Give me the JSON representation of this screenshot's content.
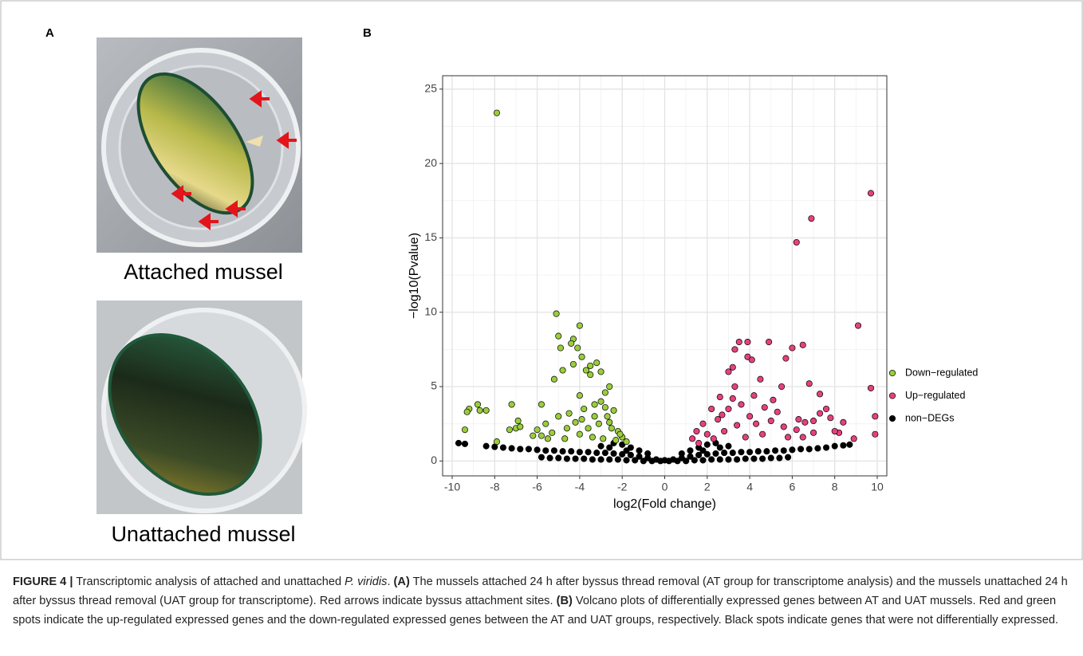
{
  "panel_a": {
    "label": "A",
    "images": [
      {
        "caption": "Attached mussel"
      },
      {
        "caption": "Unattached mussel"
      }
    ]
  },
  "panel_b": {
    "label": "B"
  },
  "chart_data": {
    "type": "scatter",
    "x_label": "log2(Fold change)",
    "y_label": "−log10(Pvalue)",
    "xlim": [
      -10.45,
      10.45
    ],
    "ylim": [
      -1.0,
      25.9
    ],
    "xticks": [
      -10,
      -8,
      -6,
      -4,
      -2,
      0,
      2,
      4,
      6,
      8,
      10
    ],
    "yticks": [
      0,
      5,
      10,
      15,
      20,
      25
    ],
    "grid": true,
    "legend": "right",
    "series": [
      {
        "name": "Down−regulated",
        "color": "#9acd3c",
        "x": [
          -7.9,
          -5.1,
          -4.0,
          -4.3,
          -4.4,
          -5.0,
          -4.1,
          -3.9,
          -4.9,
          -3.2,
          -4.3,
          -3.5,
          -3.7,
          -4.8,
          -3.0,
          -5.2,
          -3.5,
          -2.6,
          -2.8,
          -4.0,
          -5.8,
          -8.8,
          -9.2,
          -9.3,
          -8.7,
          -8.4,
          -7.2,
          -6.9,
          -7.0,
          -7.3,
          -6.8,
          -9.4,
          -7.9,
          -6.0,
          -5.6,
          -5.0,
          -4.5,
          -3.8,
          -2.2,
          -2.4,
          -3.0,
          -3.3,
          -2.6,
          -2.0,
          -1.8,
          -4.2,
          -3.6,
          -5.3,
          -4.7,
          -2.9,
          -2.3,
          -3.4,
          -4.0,
          -5.8,
          -2.7,
          -3.1,
          -2.5,
          -4.6,
          -3.9,
          -3.3,
          -2.8,
          -2.1,
          -6.2,
          -5.5
        ],
        "values": [
          23.4,
          9.9,
          9.1,
          8.2,
          7.9,
          8.4,
          7.6,
          7.0,
          7.6,
          6.6,
          6.5,
          6.4,
          6.1,
          6.1,
          6.0,
          5.5,
          5.8,
          5.0,
          4.6,
          4.4,
          3.8,
          3.8,
          3.5,
          3.3,
          3.4,
          3.4,
          3.8,
          2.7,
          2.2,
          2.1,
          2.3,
          2.1,
          1.3,
          2.1,
          2.5,
          3.0,
          3.2,
          3.5,
          2.0,
          3.4,
          4.0,
          3.0,
          2.6,
          1.6,
          1.3,
          2.6,
          2.2,
          1.9,
          1.5,
          1.5,
          1.4,
          1.6,
          1.8,
          1.7,
          3.0,
          2.5,
          2.2,
          2.2,
          2.8,
          3.8,
          3.6,
          1.8,
          1.7,
          1.5
        ]
      },
      {
        "name": "Up−regulated",
        "color": "#e6417f",
        "x": [
          9.7,
          6.9,
          6.2,
          9.1,
          9.7,
          9.9,
          9.9,
          3.5,
          3.9,
          4.9,
          6.0,
          6.5,
          3.3,
          3.9,
          4.1,
          3.2,
          3.0,
          5.7,
          6.8,
          7.3,
          5.5,
          4.5,
          5.1,
          7.6,
          3.3,
          2.6,
          2.2,
          1.8,
          1.5,
          1.3,
          2.0,
          2.5,
          3.0,
          3.6,
          4.0,
          4.3,
          5.0,
          5.6,
          6.2,
          7.0,
          7.3,
          7.8,
          8.4,
          8.2,
          8.9,
          6.5,
          2.8,
          3.4,
          4.7,
          5.3,
          1.6,
          2.3,
          3.8,
          4.6,
          5.8,
          7.0,
          6.6,
          2.7,
          3.2,
          4.2,
          6.3,
          8.0
        ],
        "values": [
          18.0,
          16.3,
          14.7,
          9.1,
          4.9,
          3.0,
          1.8,
          8.0,
          8.0,
          8.0,
          7.6,
          7.8,
          7.5,
          7.0,
          6.8,
          6.3,
          6.0,
          6.9,
          5.2,
          4.5,
          5.0,
          5.5,
          4.1,
          3.5,
          5.0,
          4.3,
          3.5,
          2.5,
          2.0,
          1.5,
          1.8,
          2.8,
          3.5,
          3.8,
          3.0,
          2.5,
          2.7,
          2.3,
          2.1,
          2.7,
          3.2,
          2.9,
          2.6,
          1.9,
          1.5,
          1.6,
          2.0,
          2.4,
          3.6,
          3.3,
          1.2,
          1.5,
          1.6,
          1.8,
          1.6,
          1.9,
          2.6,
          3.1,
          4.2,
          4.4,
          2.8,
          2.0
        ]
      },
      {
        "name": "non−DEGs",
        "color": "#000000",
        "x": [
          -9.7,
          -9.4,
          -8.4,
          -8.0,
          -7.6,
          -7.2,
          -6.8,
          -6.4,
          -6.0,
          -5.6,
          -5.2,
          -4.8,
          -4.4,
          -4.0,
          -3.6,
          -3.2,
          -2.8,
          -2.4,
          -2.0,
          -1.6,
          -1.2,
          -0.8,
          -0.4,
          0.0,
          0.4,
          0.8,
          1.2,
          1.6,
          2.0,
          2.4,
          2.8,
          3.2,
          3.6,
          4.0,
          4.4,
          4.8,
          5.2,
          5.6,
          6.0,
          6.4,
          6.8,
          7.2,
          7.6,
          8.0,
          8.4,
          8.7,
          -5.8,
          -5.4,
          -5.0,
          -4.6,
          -4.2,
          -3.8,
          -3.4,
          -3.0,
          -2.6,
          -2.2,
          -1.8,
          -1.4,
          -1.0,
          -0.6,
          -0.2,
          0.2,
          0.6,
          1.0,
          1.4,
          1.8,
          2.2,
          2.6,
          3.0,
          3.4,
          3.8,
          4.2,
          4.6,
          5.0,
          5.4,
          5.8,
          -2.4,
          -2.0,
          -1.6,
          -1.2,
          -0.8,
          0.8,
          1.2,
          1.6,
          2.0,
          2.4,
          -3.0,
          -2.6,
          2.6,
          3.0,
          -1.8,
          1.8
        ],
        "values": [
          1.2,
          1.15,
          1.0,
          0.95,
          0.9,
          0.85,
          0.8,
          0.8,
          0.75,
          0.7,
          0.7,
          0.65,
          0.65,
          0.6,
          0.6,
          0.55,
          0.55,
          0.5,
          0.45,
          0.4,
          0.3,
          0.2,
          0.1,
          0.05,
          0.1,
          0.2,
          0.3,
          0.4,
          0.45,
          0.5,
          0.55,
          0.55,
          0.6,
          0.6,
          0.65,
          0.65,
          0.7,
          0.7,
          0.75,
          0.8,
          0.8,
          0.85,
          0.9,
          1.0,
          1.05,
          1.1,
          0.25,
          0.2,
          0.2,
          0.15,
          0.15,
          0.15,
          0.1,
          0.1,
          0.1,
          0.1,
          0.05,
          0.05,
          0.0,
          0.0,
          0.0,
          0.0,
          0.0,
          0.0,
          0.05,
          0.05,
          0.1,
          0.1,
          0.1,
          0.1,
          0.15,
          0.15,
          0.15,
          0.2,
          0.2,
          0.25,
          1.2,
          1.1,
          0.9,
          0.7,
          0.5,
          0.5,
          0.7,
          0.9,
          1.1,
          1.2,
          1.0,
          0.9,
          0.9,
          1.0,
          0.7,
          0.7
        ]
      }
    ]
  },
  "caption": {
    "segments": [
      {
        "text": "FIGURE 4 |",
        "style": "bold"
      },
      {
        "text": " Transcriptomic analysis of attached and unattached ",
        "style": "normal"
      },
      {
        "text": "P. viridis",
        "style": "italic"
      },
      {
        "text": ". ",
        "style": "normal"
      },
      {
        "text": "(A)",
        "style": "bold"
      },
      {
        "text": " The mussels attached 24 h after byssus thread removal (AT group for transcriptome analysis) and the mussels unattached 24 h after byssus thread removal (UAT group for transcriptome). Red arrows indicate byssus attachment sites. ",
        "style": "normal"
      },
      {
        "text": "(B)",
        "style": "bold"
      },
      {
        "text": " Volcano plots of differentially expressed genes between AT and UAT mussels. Red and green spots indicate the up-regulated expressed genes and the down-regulated expressed genes between the AT and UAT groups, respectively. Black spots indicate genes that were not differentially expressed.",
        "style": "normal"
      }
    ]
  }
}
